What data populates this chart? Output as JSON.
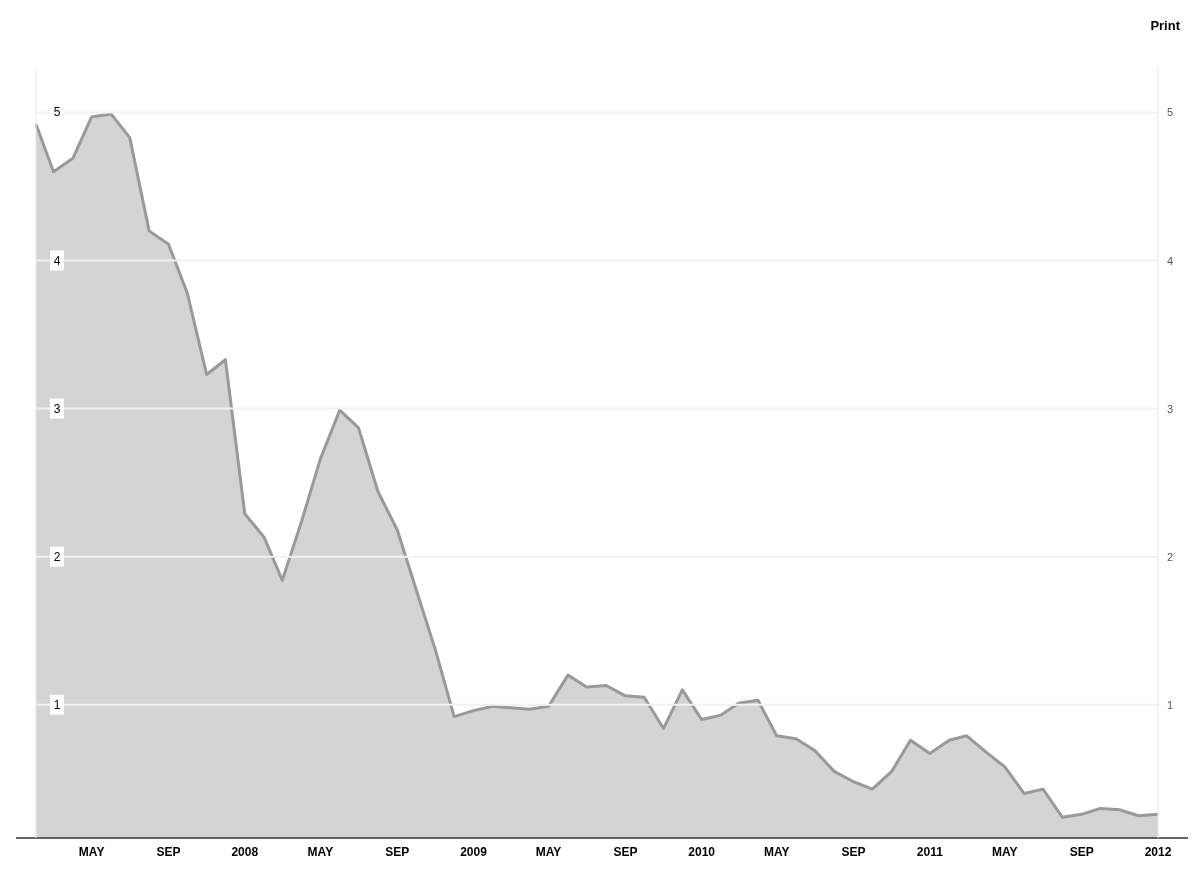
{
  "chart_data": {
    "type": "area",
    "x": [
      "2007-02",
      "2007-03",
      "2007-04",
      "2007-05",
      "2007-06",
      "2007-07",
      "2007-08",
      "2007-09",
      "2007-10",
      "2007-11",
      "2007-12",
      "2008-01",
      "2008-02",
      "2008-03",
      "2008-04",
      "2008-05",
      "2008-06",
      "2008-07",
      "2008-08",
      "2008-09",
      "2008-10",
      "2008-11",
      "2008-12",
      "2009-01",
      "2009-02",
      "2009-03",
      "2009-04",
      "2009-05",
      "2009-06",
      "2009-07",
      "2009-08",
      "2009-09",
      "2009-10",
      "2009-11",
      "2009-12",
      "2010-01",
      "2010-02",
      "2010-03",
      "2010-04",
      "2010-05",
      "2010-06",
      "2010-07",
      "2010-08",
      "2010-09",
      "2010-10",
      "2010-11",
      "2010-12",
      "2011-01",
      "2011-02",
      "2011-03",
      "2011-04",
      "2011-05",
      "2011-06",
      "2011-07",
      "2011-08",
      "2011-09",
      "2011-10",
      "2011-11",
      "2011-12",
      "2012-01"
    ],
    "series": [
      {
        "color": "#999999",
        "values": [
          4.92,
          4.6,
          4.69,
          4.97,
          4.99,
          4.83,
          4.2,
          4.11,
          3.78,
          3.23,
          3.33,
          2.29,
          2.13,
          1.84,
          2.24,
          2.66,
          2.99,
          2.87,
          2.44,
          2.18,
          1.78,
          1.37,
          0.92,
          0.96,
          0.99,
          0.98,
          0.97,
          0.99,
          1.2,
          1.12,
          1.13,
          1.06,
          1.05,
          0.84,
          1.1,
          0.9,
          0.93,
          1.01,
          1.03,
          0.79,
          0.77,
          0.69,
          0.55,
          0.48,
          0.43,
          0.55,
          0.76,
          0.67,
          0.76,
          0.79,
          0.68,
          0.58,
          0.4,
          0.43,
          0.24,
          0.26,
          0.3,
          0.29,
          0.25,
          0.26
        ]
      }
    ],
    "xlim": [
      "2007-02",
      "2012-01"
    ],
    "xticks": [
      {
        "value": "2007-05",
        "label": "MAY"
      },
      {
        "value": "2007-09",
        "label": "SEP"
      },
      {
        "value": "2008-01",
        "label": "2008"
      },
      {
        "value": "2008-05",
        "label": "MAY"
      },
      {
        "value": "2008-09",
        "label": "SEP"
      },
      {
        "value": "2009-01",
        "label": "2009"
      },
      {
        "value": "2009-05",
        "label": "MAY"
      },
      {
        "value": "2009-09",
        "label": "SEP"
      },
      {
        "value": "2010-01",
        "label": "2010"
      },
      {
        "value": "2010-05",
        "label": "MAY"
      },
      {
        "value": "2010-09",
        "label": "SEP"
      },
      {
        "value": "2011-01",
        "label": "2011"
      },
      {
        "value": "2011-05",
        "label": "MAY"
      },
      {
        "value": "2011-09",
        "label": "SEP"
      },
      {
        "value": "2012-01",
        "label": "2012"
      }
    ],
    "ylim": [
      0.1,
      5.3
    ],
    "yticks": [
      1,
      2,
      3,
      4,
      5
    ],
    "y2lim": [
      0.1,
      5.3
    ],
    "y2ticks": [
      1,
      2,
      3,
      4,
      5
    ],
    "grid": "y",
    "annotations": [
      "Print"
    ]
  }
}
